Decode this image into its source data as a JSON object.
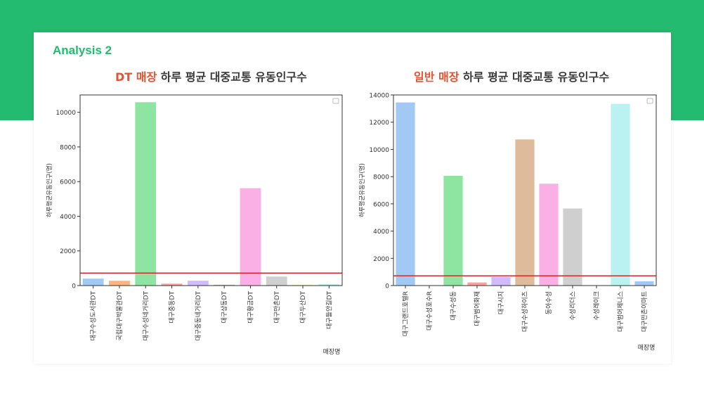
{
  "heading": "Analysis 2",
  "chart_data": [
    {
      "type": "bar",
      "title_highlight": "DT 매장",
      "title_rest": " 하루 평균 대중교통 유동인구수",
      "xlabel": "매장명",
      "ylabel": "하루평균유동인구(명)",
      "ylim": [
        0,
        11000
      ],
      "yticks": [
        0,
        2000,
        4000,
        6000,
        8000,
        10000
      ],
      "categories": [
        "대구수성도서관DT",
        "국립대구박물관DT",
        "대구수성네거리DT",
        "대구중동DT",
        "대구중동네거리DT",
        "대구상동DT",
        "대구황금DT",
        "대구만촌DT",
        "대구두산DT",
        "대구들안길DT"
      ],
      "values": [
        400,
        280,
        10580,
        110,
        280,
        50,
        5620,
        520,
        60,
        80
      ],
      "colors": [
        "#a1c9f4",
        "#ffb482",
        "#8de5a1",
        "#ff9f9b",
        "#d0bbff",
        "#debb9b",
        "#fab0e4",
        "#cfcfcf",
        "#fffea3",
        "#b9f2f0"
      ],
      "reference_line": 720,
      "reference_color": "#d62728",
      "grid": false,
      "legend": "top-right"
    },
    {
      "type": "bar",
      "title_highlight": "일반 매장",
      "title_rest": " 하루 평균 대중교통 유동인구수",
      "xlabel": "매장명",
      "ylabel": "하루평균유동인구(명)",
      "ylim": [
        0,
        14000
      ],
      "yticks": [
        0,
        2000,
        4000,
        6000,
        8000,
        10000,
        12000,
        14000
      ],
      "categories": [
        "대구그랜드호텔R",
        "대구수성호수R",
        "대구수성동",
        "대구범어화재",
        "대구시지",
        "대구수성하이츠",
        "동아수성",
        "수성리더스",
        "수성레이크",
        "대구범어제니스",
        "대구만촌이마트"
      ],
      "values": [
        13450,
        0,
        8060,
        230,
        620,
        10730,
        7480,
        5660,
        0,
        13350,
        320
      ],
      "colors": [
        "#a1c9f4",
        "#ffb482",
        "#8de5a1",
        "#ff9f9b",
        "#d0bbff",
        "#debb9b",
        "#fab0e4",
        "#cfcfcf",
        "#fffea3",
        "#b9f2f0",
        "#a1c9f4"
      ],
      "reference_line": 720,
      "reference_color": "#d62728",
      "grid": false,
      "legend": "top-right"
    }
  ]
}
